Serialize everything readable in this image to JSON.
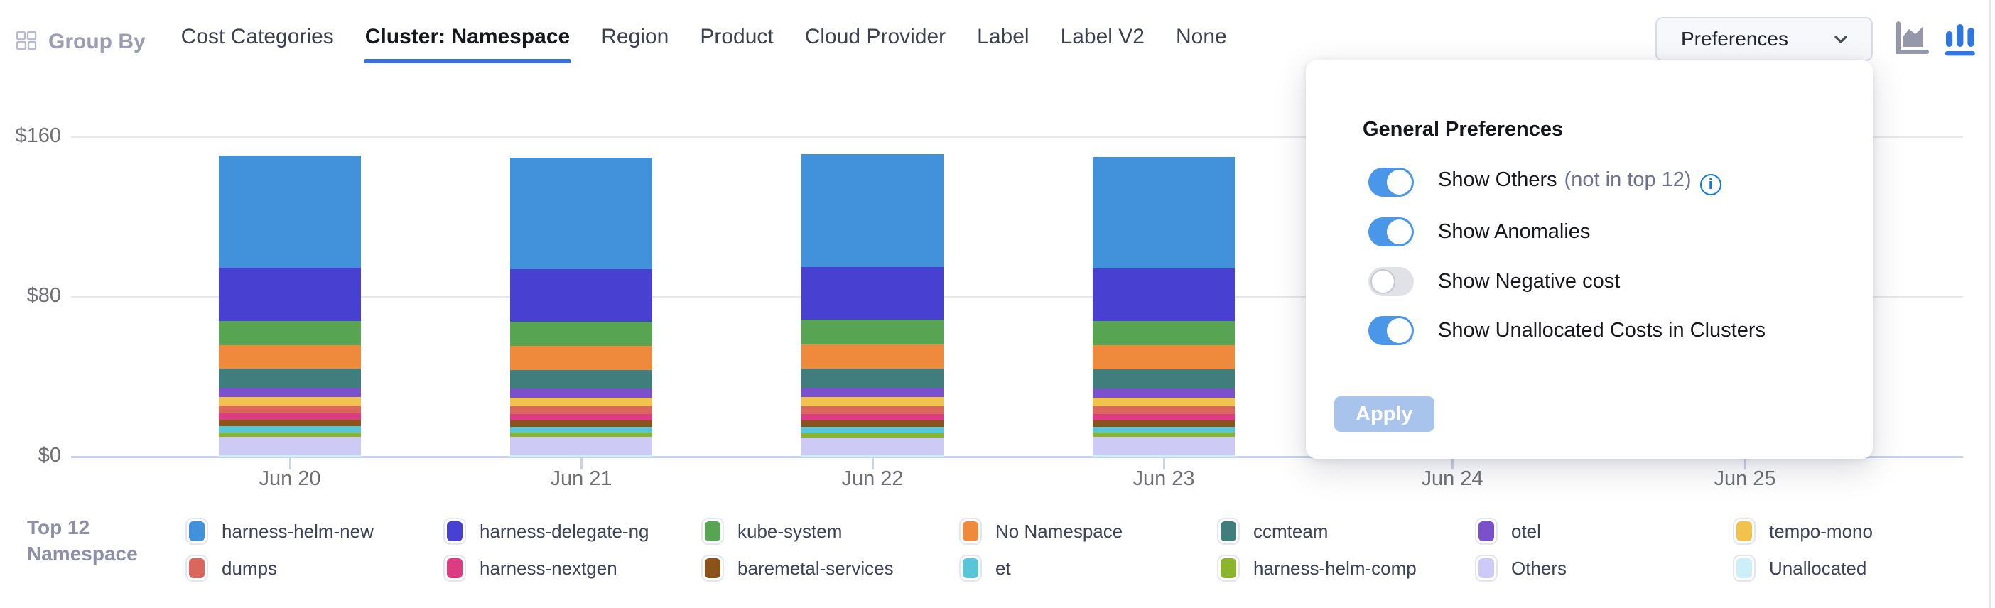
{
  "header": {
    "group_by_label": "Group By",
    "tabs": [
      {
        "label": "Cost Categories",
        "active": false
      },
      {
        "label": "Cluster: Namespace",
        "active": true
      },
      {
        "label": "Region",
        "active": false
      },
      {
        "label": "Product",
        "active": false
      },
      {
        "label": "Cloud Provider",
        "active": false
      },
      {
        "label": "Label",
        "active": false
      },
      {
        "label": "Label V2",
        "active": false
      },
      {
        "label": "None",
        "active": false
      }
    ],
    "preferences_button_label": "Preferences",
    "chart_type_icons": [
      {
        "name": "area-chart",
        "selected": false
      },
      {
        "name": "bar-chart",
        "selected": true
      }
    ]
  },
  "preferences_panel": {
    "title": "General Preferences",
    "toggles": [
      {
        "label": "Show Others",
        "suffix": "(not in top 12)",
        "has_info_icon": true,
        "on": true
      },
      {
        "label": "Show Anomalies",
        "suffix": "",
        "has_info_icon": false,
        "on": true
      },
      {
        "label": "Show Negative cost",
        "suffix": "",
        "has_info_icon": false,
        "on": false
      },
      {
        "label": "Show Unallocated Costs in Clusters",
        "suffix": "",
        "has_info_icon": false,
        "on": true
      }
    ],
    "apply_label": "Apply"
  },
  "legend": {
    "title_line1": "Top 12",
    "title_line2": "Namespace"
  },
  "chart_data": {
    "type": "bar",
    "stacked": true,
    "title": "",
    "xlabel": "",
    "ylabel": "",
    "currency": "$",
    "ylim": [
      0,
      160
    ],
    "grid": true,
    "legend_position": "bottom",
    "y_ticks": [
      {
        "label": "$0",
        "value": 0
      },
      {
        "label": "$80",
        "value": 80
      },
      {
        "label": "$160",
        "value": 160
      }
    ],
    "x_axis_labels": [
      "Jun 20",
      "Jun 21",
      "Jun 22",
      "Jun 23",
      "Jun 24",
      "Jun 25"
    ],
    "days_with_visible_bars": [
      "Jun 20",
      "Jun 21",
      "Jun 22",
      "Jun 23"
    ],
    "stack_order_note": "series listed in legend order; stacked bottom-to-top in reverse (Unallocated at bottom, harness-helm-new on top)",
    "series": [
      {
        "name": "harness-helm-new",
        "color": "#4192db",
        "values": [
          56.0,
          55.6,
          56.4,
          55.8
        ]
      },
      {
        "name": "harness-delegate-ng",
        "color": "#4740d1",
        "values": [
          26.5,
          26.3,
          26.6,
          26.4
        ]
      },
      {
        "name": "kube-system",
        "color": "#57a552",
        "values": [
          12.2,
          12.1,
          12.3,
          12.2
        ]
      },
      {
        "name": "No Namespace",
        "color": "#ef8a3d",
        "values": [
          11.8,
          11.9,
          11.9,
          11.9
        ]
      },
      {
        "name": "ccmteam",
        "color": "#3f7e7c",
        "values": [
          9.6,
          9.4,
          9.7,
          9.5
        ]
      },
      {
        "name": "otel",
        "color": "#7a50cc",
        "values": [
          4.7,
          4.6,
          4.8,
          4.7
        ]
      },
      {
        "name": "tempo-mono",
        "color": "#f2c24e",
        "values": [
          4.3,
          4.2,
          4.4,
          4.3
        ]
      },
      {
        "name": "dumps",
        "color": "#da675c",
        "values": [
          3.9,
          3.9,
          4.0,
          3.9
        ]
      },
      {
        "name": "harness-nextgen",
        "color": "#dd3c85",
        "values": [
          3.2,
          3.3,
          3.2,
          3.2
        ]
      },
      {
        "name": "baremetal-services",
        "color": "#8b521a",
        "values": [
          3.2,
          3.1,
          3.2,
          3.1
        ]
      },
      {
        "name": "et",
        "color": "#57c6d8",
        "values": [
          3.2,
          3.1,
          3.1,
          3.1
        ]
      },
      {
        "name": "harness-helm-comp",
        "color": "#8cb52e",
        "values": [
          2.1,
          2.0,
          2.1,
          2.1
        ]
      },
      {
        "name": "Others",
        "color": "#cdcbf5",
        "values": [
          8.6,
          8.7,
          8.5,
          8.6
        ]
      },
      {
        "name": "Unallocated",
        "color": "#cdeffa",
        "values": [
          1.2,
          1.2,
          1.2,
          1.2
        ]
      }
    ]
  }
}
